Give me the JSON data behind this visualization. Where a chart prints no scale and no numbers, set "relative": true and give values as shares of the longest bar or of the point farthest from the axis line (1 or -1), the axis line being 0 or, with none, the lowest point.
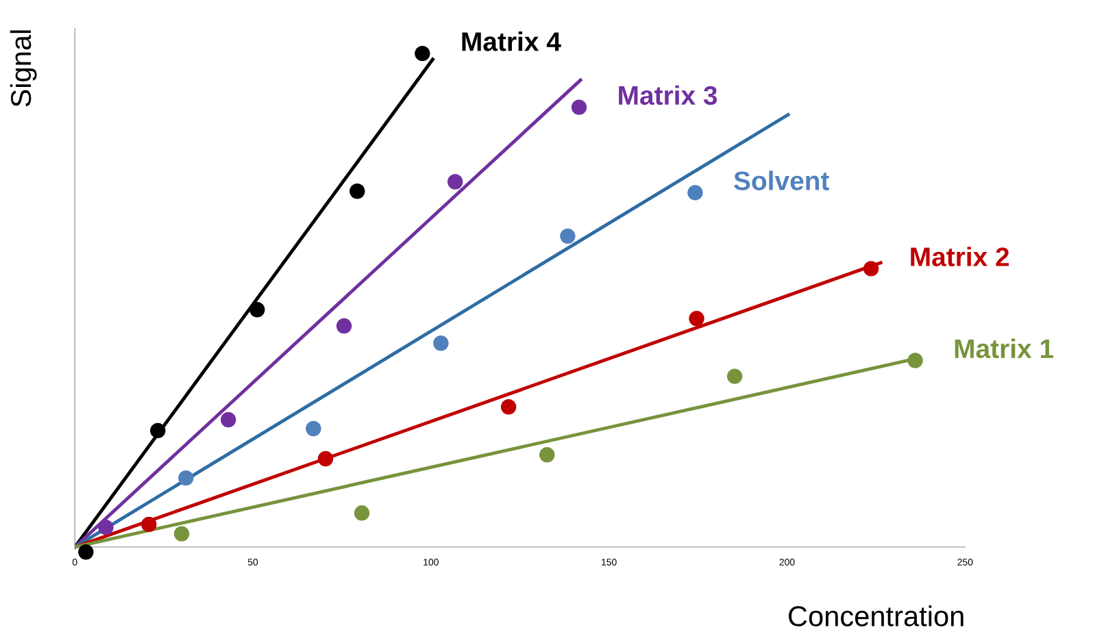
{
  "chart_data": {
    "type": "scatter",
    "xlabel": "Concentration",
    "ylabel": "Signal",
    "relative": true,
    "xlim": [
      0,
      250
    ],
    "xticks": [
      0,
      50,
      100,
      150,
      200,
      250
    ],
    "grid": false,
    "legend": false,
    "series": [
      {
        "name": "Matrix 4",
        "marker": "circle",
        "color": "#000000",
        "x": [
          3.1,
          23.3,
          51.2,
          79.3,
          97.6
        ],
        "values": [
          -0.01,
          0.236,
          0.481,
          0.721,
          1
        ]
      },
      {
        "type": "line",
        "marker": "none",
        "color": "#000000",
        "x": [
          0,
          100.5
        ],
        "values": [
          0,
          0.988
        ]
      },
      {
        "name": "Matrix 3",
        "marker": "circle",
        "color": "#7030a0",
        "x": [
          8.7,
          43.1,
          75.6,
          106.8,
          141.6
        ],
        "values": [
          0.04,
          0.258,
          0.448,
          0.74,
          0.891
        ]
      },
      {
        "type": "line",
        "marker": "none",
        "color": "#7030a0",
        "x": [
          0,
          142.0
        ],
        "values": [
          0,
          0.946
        ]
      },
      {
        "name": "Solvent",
        "marker": "circle",
        "color": "#4f81bd",
        "x": [
          31.2,
          67.0,
          102.8,
          138.4,
          174.2
        ],
        "values": [
          0.14,
          0.24,
          0.413,
          0.63,
          0.718
        ]
      },
      {
        "type": "line",
        "marker": "none",
        "color": "#2e6da4",
        "x": [
          0,
          200.3
        ],
        "values": [
          0,
          0.876
        ]
      },
      {
        "name": "Matrix 2",
        "marker": "circle",
        "color": "#c00000",
        "x": [
          20.8,
          70.4,
          121.8,
          174.6,
          223.6
        ],
        "values": [
          0.046,
          0.179,
          0.284,
          0.463,
          0.564
        ]
      },
      {
        "type": "line",
        "marker": "none",
        "color": "#c00000",
        "x": [
          0,
          226.3
        ],
        "values": [
          0,
          0.576
        ]
      },
      {
        "name": "Matrix 1",
        "marker": "circle",
        "color": "#77933c",
        "x": [
          30.0,
          80.6,
          132.6,
          185.3,
          236.0
        ],
        "values": [
          0.027,
          0.069,
          0.187,
          0.346,
          0.378
        ]
      },
      {
        "type": "line",
        "marker": "none",
        "color": "#77933c",
        "x": [
          0,
          236.3
        ],
        "values": [
          0,
          0.382
        ]
      }
    ]
  }
}
